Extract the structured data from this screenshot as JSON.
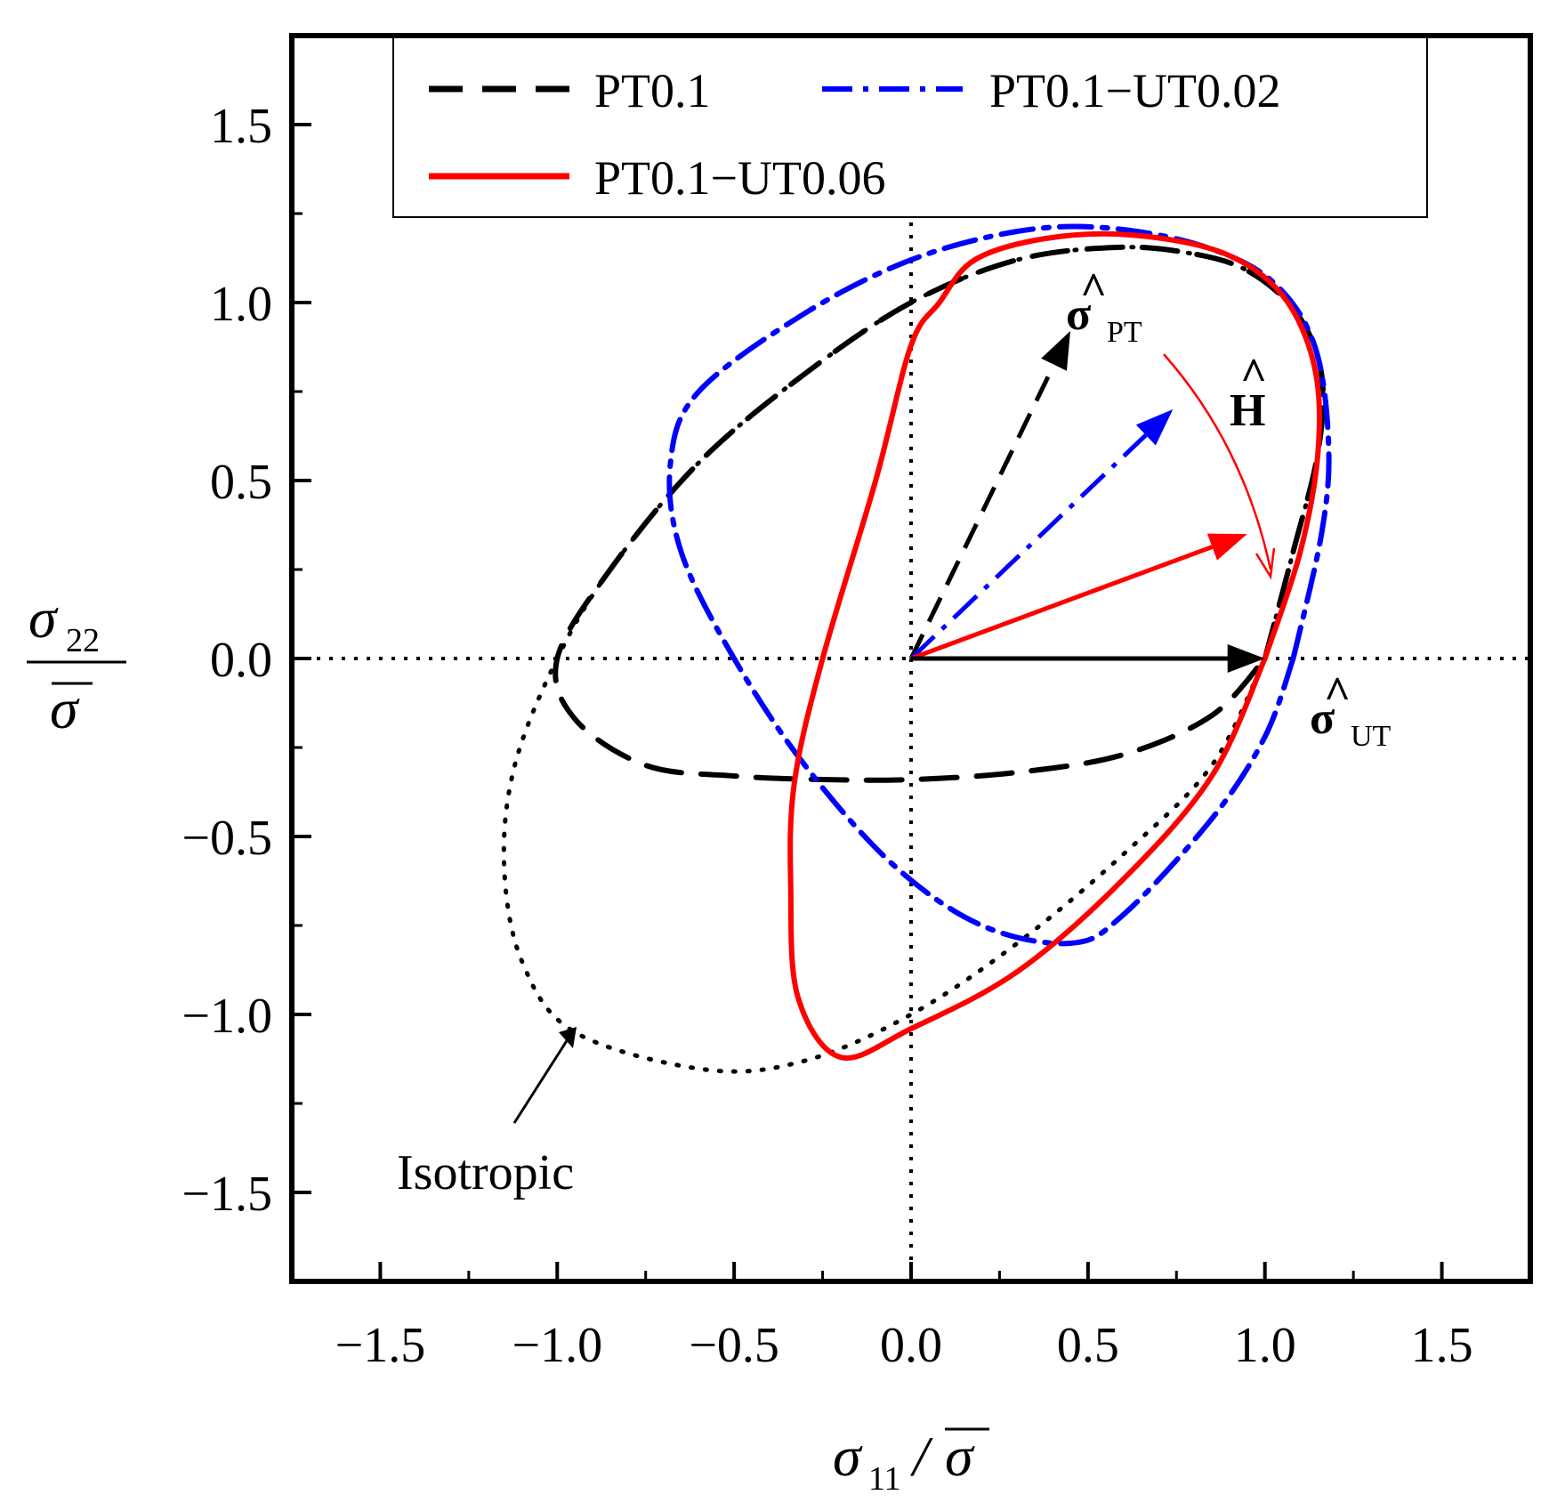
{
  "chart_data": {
    "type": "line",
    "title": "",
    "xlabel": {
      "symbol": "σ",
      "subscript": "11",
      "slash": "/",
      "bar_symbol": "σ"
    },
    "ylabel": {
      "symbol": "σ",
      "subscript": "22",
      "bar_symbol": "σ"
    },
    "xlim": [
      -1.75,
      1.75
    ],
    "ylim": [
      -1.75,
      1.75
    ],
    "xticks": [
      -1.5,
      -1.0,
      -0.5,
      0.0,
      0.5,
      1.0,
      1.5
    ],
    "yticks": [
      1.5,
      1.0,
      0.5,
      0.0,
      -0.5,
      -1.0,
      -1.5
    ],
    "xtick_labels": [
      "−1.5",
      "−1.0",
      "−0.5",
      "0.0",
      "0.5",
      "1.0",
      "1.5"
    ],
    "ytick_labels": [
      "1.5",
      "1.0",
      "0.5",
      "0.0",
      "−0.5",
      "−1.0",
      "−1.5"
    ],
    "legend": [
      {
        "label": "PT0.1",
        "color": "#000000",
        "style": "dashed"
      },
      {
        "label": "PT0.1−UT0.02",
        "color": "#0000ff",
        "style": "dashdot"
      },
      {
        "label": "PT0.1−UT0.06",
        "color": "#ff0000",
        "style": "solid"
      }
    ],
    "legend_position": "top",
    "series": [
      {
        "name": "Isotropic",
        "color": "#000000",
        "style": "dotted",
        "points": [
          [
            1.0,
            0.0
          ],
          [
            1.08,
            0.3
          ],
          [
            1.15,
            0.58
          ],
          [
            1.16,
            0.8
          ],
          [
            1.09,
            0.97
          ],
          [
            0.95,
            1.09
          ],
          [
            0.78,
            1.14
          ],
          [
            0.58,
            1.155
          ],
          [
            0.3,
            1.12
          ],
          [
            0.0,
            1.0
          ],
          [
            -0.3,
            0.8
          ],
          [
            -0.6,
            0.55
          ],
          [
            -0.85,
            0.25
          ],
          [
            -1.0,
            0.0
          ],
          [
            -1.12,
            -0.3
          ],
          [
            -1.15,
            -0.58
          ],
          [
            -1.1,
            -0.85
          ],
          [
            -0.95,
            -1.05
          ],
          [
            -0.58,
            -1.155
          ],
          [
            -0.3,
            -1.13
          ],
          [
            0.0,
            -1.0
          ],
          [
            0.3,
            -0.8
          ],
          [
            0.6,
            -0.55
          ],
          [
            0.85,
            -0.3
          ],
          [
            1.0,
            0.0
          ]
        ]
      },
      {
        "name": "PT0.1",
        "color": "#000000",
        "style": "dashed",
        "points": [
          [
            1.0,
            0.0
          ],
          [
            1.08,
            0.3
          ],
          [
            1.15,
            0.58
          ],
          [
            1.16,
            0.8
          ],
          [
            1.09,
            0.97
          ],
          [
            0.95,
            1.09
          ],
          [
            0.78,
            1.14
          ],
          [
            0.58,
            1.155
          ],
          [
            0.3,
            1.12
          ],
          [
            0.0,
            1.0
          ],
          [
            -0.3,
            0.8
          ],
          [
            -0.6,
            0.55
          ],
          [
            -0.85,
            0.25
          ],
          [
            -1.0,
            0.0
          ],
          [
            -0.95,
            -0.17
          ],
          [
            -0.75,
            -0.3
          ],
          [
            -0.5,
            -0.33
          ],
          [
            -0.25,
            -0.34
          ],
          [
            0.0,
            -0.34
          ],
          [
            0.3,
            -0.32
          ],
          [
            0.6,
            -0.27
          ],
          [
            0.85,
            -0.16
          ],
          [
            1.0,
            0.0
          ]
        ]
      },
      {
        "name": "PT0.1−UT0.02",
        "color": "#0000ff",
        "style": "dashdot",
        "points": [
          [
            1.08,
            0.0
          ],
          [
            1.16,
            0.35
          ],
          [
            1.18,
            0.6
          ],
          [
            1.14,
            0.88
          ],
          [
            1.02,
            1.06
          ],
          [
            0.82,
            1.16
          ],
          [
            0.55,
            1.21
          ],
          [
            0.3,
            1.2
          ],
          [
            0.0,
            1.12
          ],
          [
            -0.3,
            0.97
          ],
          [
            -0.6,
            0.75
          ],
          [
            -0.68,
            0.55
          ],
          [
            -0.65,
            0.3
          ],
          [
            -0.5,
            0.0
          ],
          [
            -0.3,
            -0.3
          ],
          [
            -0.05,
            -0.58
          ],
          [
            0.2,
            -0.75
          ],
          [
            0.45,
            -0.8
          ],
          [
            0.6,
            -0.72
          ],
          [
            0.85,
            -0.45
          ],
          [
            1.0,
            -0.22
          ],
          [
            1.08,
            0.0
          ]
        ]
      },
      {
        "name": "PT0.1−UT0.06",
        "color": "#ff0000",
        "style": "solid",
        "points": [
          [
            1.0,
            0.0
          ],
          [
            1.1,
            0.3
          ],
          [
            1.15,
            0.58
          ],
          [
            1.14,
            0.82
          ],
          [
            1.05,
            1.02
          ],
          [
            0.88,
            1.14
          ],
          [
            0.62,
            1.19
          ],
          [
            0.38,
            1.18
          ],
          [
            0.18,
            1.12
          ],
          [
            0.08,
            1.0
          ],
          [
            0.0,
            0.88
          ],
          [
            -0.1,
            0.5
          ],
          [
            -0.25,
            0.0
          ],
          [
            -0.33,
            -0.35
          ],
          [
            -0.34,
            -0.65
          ],
          [
            -0.32,
            -0.95
          ],
          [
            -0.2,
            -1.12
          ],
          [
            0.0,
            -1.04
          ],
          [
            0.3,
            -0.88
          ],
          [
            0.6,
            -0.62
          ],
          [
            0.85,
            -0.33
          ],
          [
            1.0,
            0.0
          ]
        ]
      }
    ],
    "vectors": [
      {
        "name": "sigma-hat-PT",
        "color": "#000000",
        "style": "dashed",
        "from": [
          0,
          0
        ],
        "to": [
          0.45,
          0.92
        ]
      },
      {
        "name": "PT0.1-UT0.02",
        "color": "#0000ff",
        "style": "dashdot",
        "from": [
          0,
          0
        ],
        "to": [
          0.74,
          0.7
        ]
      },
      {
        "name": "PT0.1-UT0.06",
        "color": "#ff0000",
        "style": "solid",
        "from": [
          0,
          0
        ],
        "to": [
          0.95,
          0.35
        ]
      },
      {
        "name": "sigma-hat-UT",
        "color": "#000000",
        "style": "solid",
        "from": [
          0,
          0
        ],
        "to": [
          1.0,
          0.0
        ]
      }
    ],
    "annotations": {
      "sigma_pt": {
        "symbol": "σ",
        "hat": "^",
        "subscript": "PT"
      },
      "sigma_ut": {
        "symbol": "σ",
        "hat": "^",
        "subscript": "UT"
      },
      "h_hat": {
        "symbol": "H",
        "hat": "^"
      },
      "isotropic": "Isotropic"
    }
  }
}
